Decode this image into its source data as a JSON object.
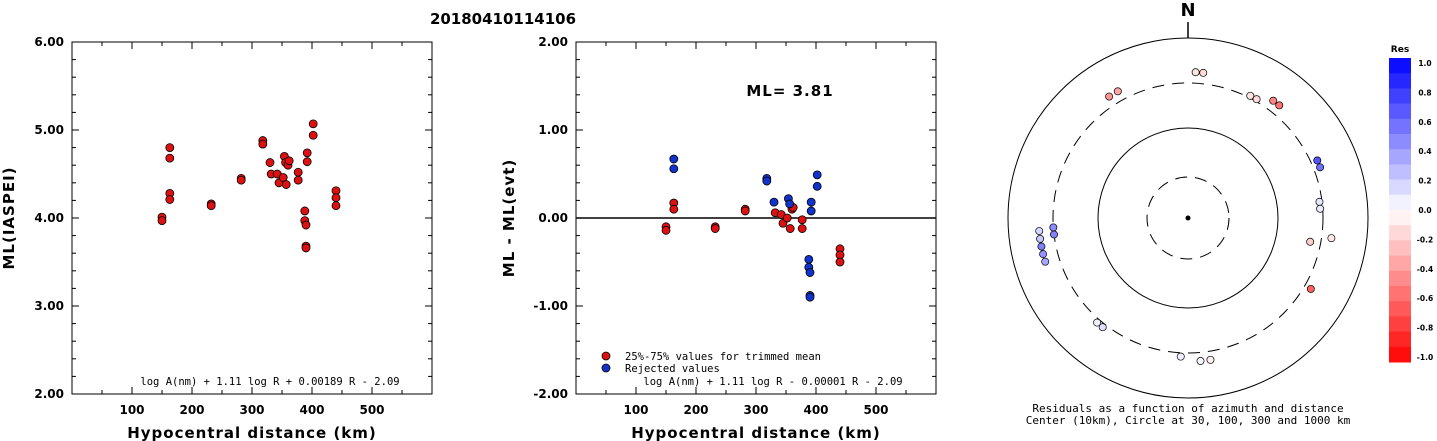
{
  "title": "20180410114106",
  "chart_data": [
    {
      "type": "scatter",
      "xlabel": "Hypocentral distance (km)",
      "ylabel": "ML(IASPEI)",
      "xlim": [
        0,
        600
      ],
      "ylim": [
        2.0,
        6.0
      ],
      "xticks": [
        "100",
        "200",
        "300",
        "400",
        "500"
      ],
      "yticks": [
        "2.00",
        "3.00",
        "4.00",
        "5.00",
        "6.00"
      ],
      "formula": "log A(nm) + 1.11 log R + 0.00189 R - 2.09",
      "point_color": "#dd1111",
      "points": [
        [
          150,
          4.01
        ],
        [
          150,
          3.97
        ],
        [
          163,
          4.8
        ],
        [
          163,
          4.68
        ],
        [
          163,
          4.28
        ],
        [
          163,
          4.21
        ],
        [
          232,
          4.16
        ],
        [
          232,
          4.14
        ],
        [
          282,
          4.45
        ],
        [
          282,
          4.43
        ],
        [
          318,
          4.88
        ],
        [
          318,
          4.84
        ],
        [
          330,
          4.63
        ],
        [
          332,
          4.5
        ],
        [
          342,
          4.5
        ],
        [
          345,
          4.4
        ],
        [
          352,
          4.46
        ],
        [
          354,
          4.7
        ],
        [
          356,
          4.63
        ],
        [
          357,
          4.38
        ],
        [
          360,
          4.6
        ],
        [
          362,
          4.65
        ],
        [
          377,
          4.52
        ],
        [
          377,
          4.43
        ],
        [
          388,
          4.08
        ],
        [
          388,
          3.97
        ],
        [
          390,
          3.92
        ],
        [
          390,
          3.68
        ],
        [
          390,
          3.66
        ],
        [
          392,
          4.74
        ],
        [
          392,
          4.64
        ],
        [
          402,
          5.07
        ],
        [
          402,
          4.94
        ],
        [
          440,
          4.31
        ],
        [
          440,
          4.23
        ],
        [
          440,
          4.14
        ]
      ]
    },
    {
      "type": "scatter",
      "xlabel": "Hypocentral distance (km)",
      "ylabel": "ML - ML(evt)",
      "xlim": [
        0,
        600
      ],
      "ylim": [
        -2.0,
        2.0
      ],
      "xticks": [
        "100",
        "200",
        "300",
        "400",
        "500"
      ],
      "yticks": [
        "-2.00",
        "-1.00",
        "0.00",
        "1.00",
        "2.00"
      ],
      "annotation": "ML= 3.81",
      "formula": "log A(nm) + 1.11 log R - 0.00001 R - 2.09",
      "series": [
        {
          "name": "25%-75% values for trimmed mean",
          "color": "#dd1111",
          "points": [
            [
              150,
              -0.1
            ],
            [
              150,
              -0.14
            ],
            [
              163,
              0.17
            ],
            [
              163,
              0.1
            ],
            [
              232,
              -0.1
            ],
            [
              232,
              -0.12
            ],
            [
              282,
              0.1
            ],
            [
              282,
              0.08
            ],
            [
              332,
              0.06
            ],
            [
              342,
              0.04
            ],
            [
              345,
              -0.06
            ],
            [
              352,
              0.0
            ],
            [
              357,
              -0.12
            ],
            [
              360,
              0.1
            ],
            [
              362,
              0.12
            ],
            [
              377,
              -0.02
            ],
            [
              377,
              -0.12
            ],
            [
              440,
              -0.35
            ],
            [
              440,
              -0.42
            ],
            [
              440,
              -0.5
            ]
          ]
        },
        {
          "name": "Rejected values",
          "color": "#1133cc",
          "points": [
            [
              163,
              0.67
            ],
            [
              163,
              0.56
            ],
            [
              318,
              0.45
            ],
            [
              318,
              0.42
            ],
            [
              330,
              0.18
            ],
            [
              354,
              0.22
            ],
            [
              356,
              0.16
            ],
            [
              388,
              -0.47
            ],
            [
              388,
              -0.56
            ],
            [
              390,
              -0.62
            ],
            [
              390,
              -0.88
            ],
            [
              390,
              -0.9
            ],
            [
              392,
              0.18
            ],
            [
              392,
              0.08
            ],
            [
              402,
              0.49
            ],
            [
              402,
              0.36
            ]
          ]
        }
      ]
    },
    {
      "type": "scatter",
      "subtype": "polar residual plot",
      "north_label": "N",
      "caption_line1": "Residuals as a function of azimuth and distance",
      "caption_line2": "Center (10km), Circle at 30, 100, 300 and 1000 km",
      "colorbar_title": "Res",
      "colorbar_ticks": [
        "1.0",
        "0.8",
        "0.6",
        "0.4",
        "0.2",
        "0.0",
        "-0.2",
        "-0.4",
        "-0.6",
        "-0.8",
        "-1.0"
      ],
      "points": [
        {
          "az": 331,
          "dist": 390,
          "res": -0.35
        },
        {
          "az": 327,
          "dist": 390,
          "res": -0.42
        },
        {
          "az": 3,
          "dist": 402,
          "res": -0.1
        },
        {
          "az": 6,
          "dist": 402,
          "res": -0.14
        },
        {
          "az": 27,
          "dist": 318,
          "res": -0.1
        },
        {
          "az": 30,
          "dist": 318,
          "res": -0.14
        },
        {
          "az": 36,
          "dist": 392,
          "res": -0.48
        },
        {
          "az": 39,
          "dist": 392,
          "res": -0.55
        },
        {
          "az": 66,
          "dist": 357,
          "res": 0.67
        },
        {
          "az": 69,
          "dist": 357,
          "res": 0.56
        },
        {
          "az": 83,
          "dist": 282,
          "res": 0.1
        },
        {
          "az": 86,
          "dist": 282,
          "res": 0.08
        },
        {
          "az": 98,
          "dist": 390,
          "res": -0.1
        },
        {
          "az": 101,
          "dist": 232,
          "res": -0.2
        },
        {
          "az": 120,
          "dist": 360,
          "res": -0.62
        },
        {
          "az": 171,
          "dist": 377,
          "res": -0.06
        },
        {
          "az": 175,
          "dist": 377,
          "res": 0.04
        },
        {
          "az": 183,
          "dist": 332,
          "res": 0.06
        },
        {
          "az": 218,
          "dist": 330,
          "res": 0.12
        },
        {
          "az": 221,
          "dist": 330,
          "res": 0.06
        },
        {
          "az": 253,
          "dist": 440,
          "res": 0.35
        },
        {
          "az": 256,
          "dist": 440,
          "res": 0.42
        },
        {
          "az": 259,
          "dist": 440,
          "res": 0.5
        },
        {
          "az": 262,
          "dist": 440,
          "res": 0.22
        },
        {
          "az": 265,
          "dist": 440,
          "res": 0.16
        },
        {
          "az": 263,
          "dist": 300,
          "res": 0.49
        },
        {
          "az": 266,
          "dist": 300,
          "res": 0.45
        }
      ]
    }
  ]
}
